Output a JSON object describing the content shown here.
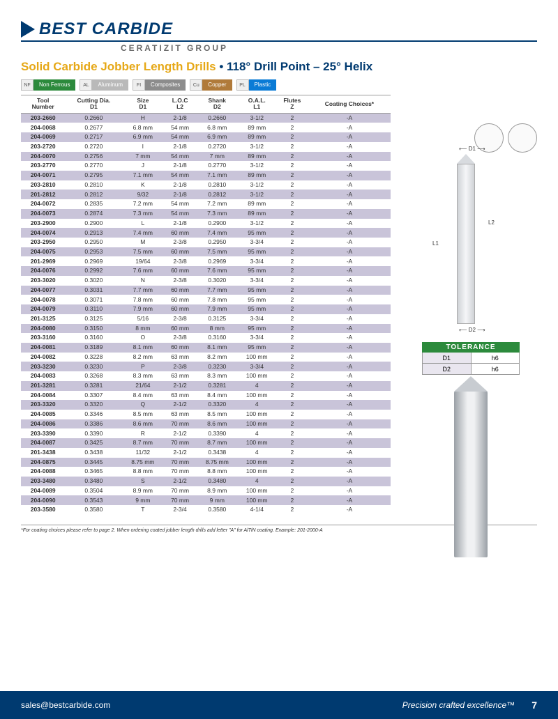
{
  "brand": {
    "name": "BEST CARBIDE",
    "group": "CERATIZIT GROUP"
  },
  "title": {
    "a": "Solid Carbide Jobber Length Drills",
    "b": "• 118° Drill Point – 25° Helix"
  },
  "materials": [
    {
      "sym": "NF",
      "label": "Non Ferrous",
      "color": "#2c8a3c"
    },
    {
      "sym": "AL",
      "label": "Aluminum",
      "color": "#b9b9b9"
    },
    {
      "sym": "FI",
      "label": "Composites",
      "color": "#8c8c8c"
    },
    {
      "sym": "Cu",
      "label": "Copper",
      "color": "#b07a3a"
    },
    {
      "sym": "PL",
      "label": "Plastic",
      "color": "#0a7bd6"
    }
  ],
  "columns": [
    {
      "h1": "Tool",
      "h2": "Number"
    },
    {
      "h1": "Cutting Dia.",
      "h2": "D1"
    },
    {
      "h1": "Size",
      "h2": "D1"
    },
    {
      "h1": "L.O.C",
      "h2": "L2"
    },
    {
      "h1": "Shank",
      "h2": "D2"
    },
    {
      "h1": "O.A.L.",
      "h2": "L1"
    },
    {
      "h1": "Flutes",
      "h2": "Z"
    },
    {
      "h1": "Coating Choices*",
      "h2": ""
    }
  ],
  "rows": [
    [
      "203-2660",
      "0.2660",
      "H",
      "2-1/8",
      "0.2660",
      "3-1/2",
      "2",
      "-A"
    ],
    [
      "204-0068",
      "0.2677",
      "6.8 mm",
      "54 mm",
      "6.8 mm",
      "89 mm",
      "2",
      "-A"
    ],
    [
      "204-0069",
      "0.2717",
      "6.9 mm",
      "54 mm",
      "6.9 mm",
      "89 mm",
      "2",
      "-A"
    ],
    [
      "203-2720",
      "0.2720",
      "I",
      "2-1/8",
      "0.2720",
      "3-1/2",
      "2",
      "-A"
    ],
    [
      "204-0070",
      "0.2756",
      "7 mm",
      "54 mm",
      "7 mm",
      "89 mm",
      "2",
      "-A"
    ],
    [
      "203-2770",
      "0.2770",
      "J",
      "2-1/8",
      "0.2770",
      "3-1/2",
      "2",
      "-A"
    ],
    [
      "204-0071",
      "0.2795",
      "7.1 mm",
      "54 mm",
      "7.1 mm",
      "89 mm",
      "2",
      "-A"
    ],
    [
      "203-2810",
      "0.2810",
      "K",
      "2-1/8",
      "0.2810",
      "3-1/2",
      "2",
      "-A"
    ],
    [
      "201-2812",
      "0.2812",
      "9/32",
      "2-1/8",
      "0.2812",
      "3-1/2",
      "2",
      "-A"
    ],
    [
      "204-0072",
      "0.2835",
      "7.2 mm",
      "54 mm",
      "7.2 mm",
      "89 mm",
      "2",
      "-A"
    ],
    [
      "204-0073",
      "0.2874",
      "7.3 mm",
      "54 mm",
      "7.3 mm",
      "89 mm",
      "2",
      "-A"
    ],
    [
      "203-2900",
      "0.2900",
      "L",
      "2-1/8",
      "0.2900",
      "3-1/2",
      "2",
      "-A"
    ],
    [
      "204-0074",
      "0.2913",
      "7.4 mm",
      "60 mm",
      "7.4 mm",
      "95 mm",
      "2",
      "-A"
    ],
    [
      "203-2950",
      "0.2950",
      "M",
      "2-3/8",
      "0.2950",
      "3-3/4",
      "2",
      "-A"
    ],
    [
      "204-0075",
      "0.2953",
      "7.5 mm",
      "60 mm",
      "7.5 mm",
      "95 mm",
      "2",
      "-A"
    ],
    [
      "201-2969",
      "0.2969",
      "19/64",
      "2-3/8",
      "0.2969",
      "3-3/4",
      "2",
      "-A"
    ],
    [
      "204-0076",
      "0.2992",
      "7.6 mm",
      "60 mm",
      "7.6 mm",
      "95 mm",
      "2",
      "-A"
    ],
    [
      "203-3020",
      "0.3020",
      "N",
      "2-3/8",
      "0.3020",
      "3-3/4",
      "2",
      "-A"
    ],
    [
      "204-0077",
      "0.3031",
      "7.7 mm",
      "60 mm",
      "7.7 mm",
      "95 mm",
      "2",
      "-A"
    ],
    [
      "204-0078",
      "0.3071",
      "7.8 mm",
      "60 mm",
      "7.8 mm",
      "95 mm",
      "2",
      "-A"
    ],
    [
      "204-0079",
      "0.3110",
      "7.9 mm",
      "60 mm",
      "7.9 mm",
      "95 mm",
      "2",
      "-A"
    ],
    [
      "201-3125",
      "0.3125",
      "5/16",
      "2-3/8",
      "0.3125",
      "3-3/4",
      "2",
      "-A"
    ],
    [
      "204-0080",
      "0.3150",
      "8 mm",
      "60 mm",
      "8 mm",
      "95 mm",
      "2",
      "-A"
    ],
    [
      "203-3160",
      "0.3160",
      "O",
      "2-3/8",
      "0.3160",
      "3-3/4",
      "2",
      "-A"
    ],
    [
      "204-0081",
      "0.3189",
      "8.1 mm",
      "60 mm",
      "8.1 mm",
      "95 mm",
      "2",
      "-A"
    ],
    [
      "204-0082",
      "0.3228",
      "8.2 mm",
      "63 mm",
      "8.2 mm",
      "100 mm",
      "2",
      "-A"
    ],
    [
      "203-3230",
      "0.3230",
      "P",
      "2-3/8",
      "0.3230",
      "3-3/4",
      "2",
      "-A"
    ],
    [
      "204-0083",
      "0.3268",
      "8.3 mm",
      "63 mm",
      "8.3 mm",
      "100 mm",
      "2",
      "-A"
    ],
    [
      "201-3281",
      "0.3281",
      "21/64",
      "2-1/2",
      "0.3281",
      "4",
      "2",
      "-A"
    ],
    [
      "204-0084",
      "0.3307",
      "8.4 mm",
      "63 mm",
      "8.4 mm",
      "100 mm",
      "2",
      "-A"
    ],
    [
      "203-3320",
      "0.3320",
      "Q",
      "2-1/2",
      "0.3320",
      "4",
      "2",
      "-A"
    ],
    [
      "204-0085",
      "0.3346",
      "8.5 mm",
      "63 mm",
      "8.5 mm",
      "100 mm",
      "2",
      "-A"
    ],
    [
      "204-0086",
      "0.3386",
      "8.6 mm",
      "70 mm",
      "8.6 mm",
      "100 mm",
      "2",
      "-A"
    ],
    [
      "203-3390",
      "0.3390",
      "R",
      "2-1/2",
      "0.3390",
      "4",
      "2",
      "-A"
    ],
    [
      "204-0087",
      "0.3425",
      "8.7 mm",
      "70 mm",
      "8.7 mm",
      "100 mm",
      "2",
      "-A"
    ],
    [
      "201-3438",
      "0.3438",
      "11/32",
      "2-1/2",
      "0.3438",
      "4",
      "2",
      "-A"
    ],
    [
      "204-0875",
      "0.3445",
      "8.75 mm",
      "70 mm",
      "8.75 mm",
      "100 mm",
      "2",
      "-A"
    ],
    [
      "204-0088",
      "0.3465",
      "8.8 mm",
      "70 mm",
      "8.8 mm",
      "100 mm",
      "2",
      "-A"
    ],
    [
      "203-3480",
      "0.3480",
      "S",
      "2-1/2",
      "0.3480",
      "4",
      "2",
      "-A"
    ],
    [
      "204-0089",
      "0.3504",
      "8.9 mm",
      "70 mm",
      "8.9 mm",
      "100 mm",
      "2",
      "-A"
    ],
    [
      "204-0090",
      "0.3543",
      "9 mm",
      "70 mm",
      "9 mm",
      "100 mm",
      "2",
      "-A"
    ],
    [
      "203-3580",
      "0.3580",
      "T",
      "2-3/4",
      "0.3580",
      "4-1/4",
      "2",
      "-A"
    ]
  ],
  "footnote": "*For coating choices please refer to page 2. When ordering coated jobber length drills add letter \"A\" for AlTiN coating. Example: 201-2000-A",
  "diagram": {
    "d1": "D1",
    "d2": "D2",
    "l1": "L1",
    "l2": "L2"
  },
  "tolerance": {
    "title": "TOLERANCE",
    "rows": [
      [
        "D1",
        "h6"
      ],
      [
        "D2",
        "h6"
      ]
    ]
  },
  "footer": {
    "email": "sales@bestcarbide.com",
    "tag": "Precision crafted excellence™",
    "page": "7"
  }
}
